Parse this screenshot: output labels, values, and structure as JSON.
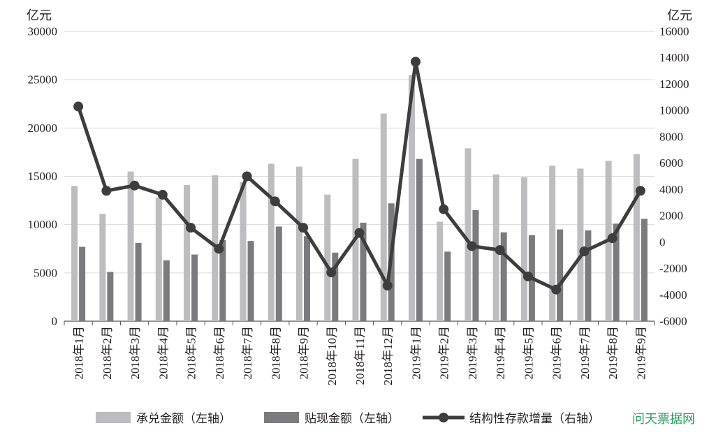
{
  "chart_data": {
    "type": "bar-line",
    "categories": [
      "2018年1月",
      "2018年2月",
      "2018年3月",
      "2018年4月",
      "2018年5月",
      "2018年6月",
      "2018年7月",
      "2018年8月",
      "2018年9月",
      "2018年10月",
      "2018年11月",
      "2018年12月",
      "2019年1月",
      "2019年2月",
      "2019年3月",
      "2019年4月",
      "2019年5月",
      "2019年6月",
      "2019年7月",
      "2019年8月",
      "2019年9月"
    ],
    "series": [
      {
        "name": "承兑金额（左轴）",
        "type": "bar",
        "axis": "left",
        "values": [
          14000,
          11100,
          15500,
          12800,
          14100,
          15100,
          14400,
          16300,
          16000,
          13100,
          16800,
          21500,
          25500,
          10300,
          17900,
          15200,
          14900,
          16100,
          15800,
          16600,
          17300
        ]
      },
      {
        "name": "贴现金额（左轴）",
        "type": "bar",
        "axis": "left",
        "values": [
          7700,
          5100,
          8100,
          6300,
          6900,
          8400,
          8300,
          9800,
          8800,
          7100,
          10200,
          12200,
          16800,
          7200,
          11500,
          9200,
          8900,
          9500,
          9400,
          10100,
          10600
        ]
      },
      {
        "name": "结构性存款增量（右轴）",
        "type": "line",
        "axis": "right",
        "values": [
          10300,
          3900,
          4300,
          3600,
          1100,
          -500,
          5000,
          3100,
          1100,
          -2300,
          700,
          -3300,
          13700,
          2500,
          -300,
          -600,
          -2600,
          -3600,
          -700,
          300,
          3900
        ]
      }
    ],
    "ylabel": "亿元",
    "y2label": "亿元",
    "ylim": [
      0,
      30000
    ],
    "y2lim": [
      -6000,
      16000
    ],
    "yticks": [
      0,
      5000,
      10000,
      15000,
      20000,
      25000,
      30000
    ],
    "y2ticks": [
      -6000,
      -4000,
      -2000,
      0,
      2000,
      4000,
      6000,
      8000,
      10000,
      12000,
      14000,
      16000
    ],
    "grid": true,
    "legend_position": "bottom"
  },
  "watermark": "问天票据网",
  "colors": {
    "acceptance_bar": "#bdbdbf",
    "discount_bar": "#7b7b7d",
    "deposit_line": "#3d3d3d",
    "grid": "#d9d9d9",
    "axis": "#555555",
    "watermark": "#2a9d5c"
  }
}
